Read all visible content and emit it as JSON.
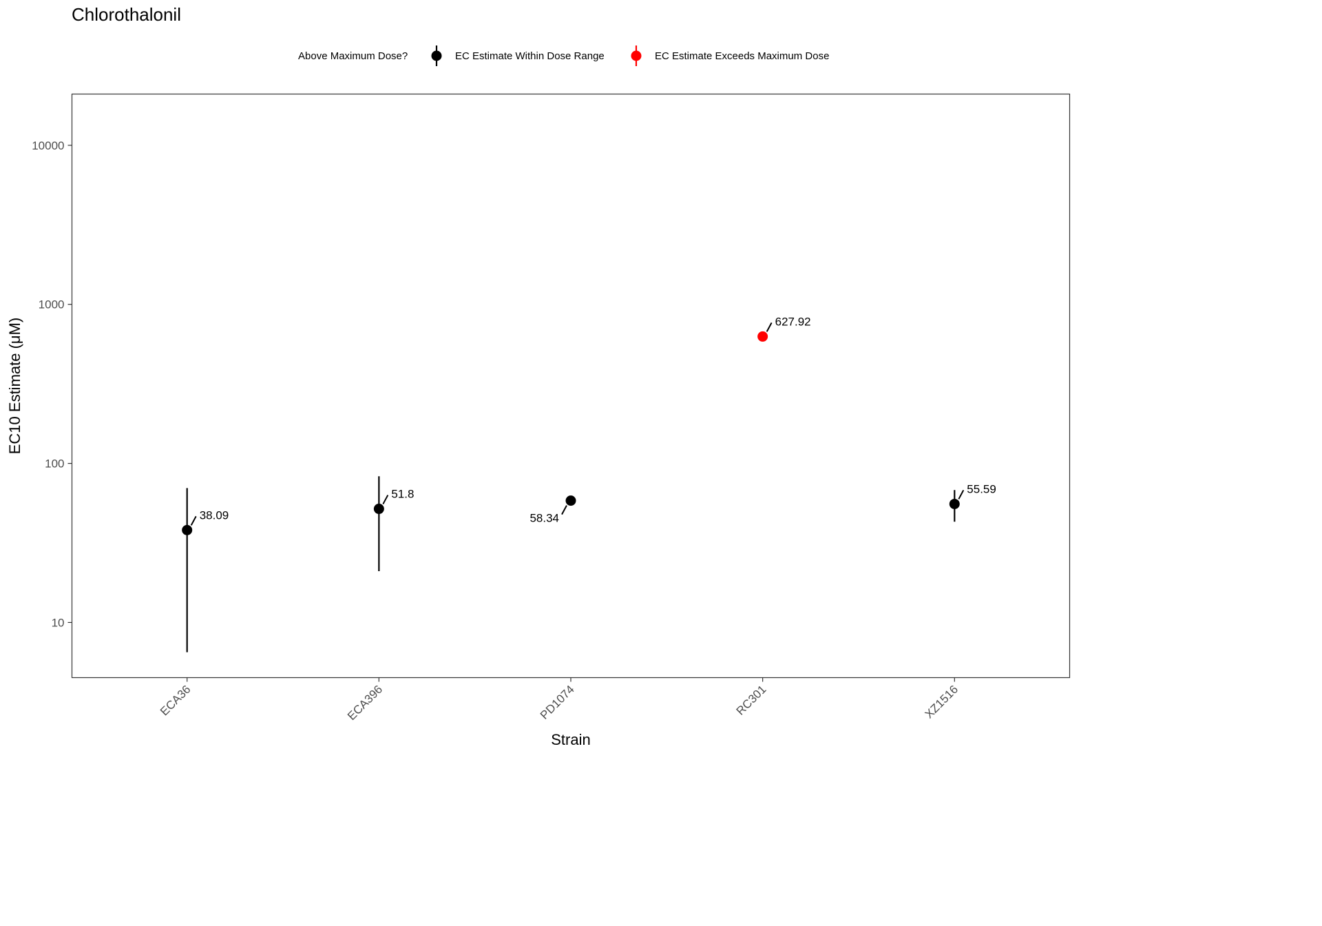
{
  "chart_data": {
    "type": "scatter",
    "title": "Chlorothalonil",
    "xlabel": "Strain",
    "ylabel": "EC10 Estimate (μM)",
    "y_scale": "log10",
    "ylim": [
      4.5,
      21000
    ],
    "y_ticks": [
      10,
      100,
      1000,
      10000
    ],
    "y_tick_labels": [
      "10",
      "100",
      "1000",
      "10000"
    ],
    "categories": [
      "ECA36",
      "ECA396",
      "PD1074",
      "RC301",
      "XZ1516"
    ],
    "grid": false,
    "legend": {
      "title": "Above Maximum Dose?",
      "placement": "top",
      "entries": [
        {
          "label": "EC Estimate Within Dose Range",
          "color": "#000000"
        },
        {
          "label": "EC Estimate Exceeds Maximum Dose",
          "color": "#ff0000"
        }
      ]
    },
    "points": [
      {
        "strain": "ECA36",
        "value": 38.09,
        "label": "38.09",
        "lower": 6.5,
        "upper": 70,
        "exceeds_max": false,
        "label_side": "right"
      },
      {
        "strain": "ECA396",
        "value": 51.8,
        "label": "51.8",
        "lower": 21,
        "upper": 83,
        "exceeds_max": false,
        "label_side": "right"
      },
      {
        "strain": "PD1074",
        "value": 58.34,
        "label": "58.34",
        "lower": null,
        "upper": null,
        "exceeds_max": false,
        "label_side": "left"
      },
      {
        "strain": "RC301",
        "value": 627.92,
        "label": "627.92",
        "lower": null,
        "upper": null,
        "exceeds_max": true,
        "label_side": "right"
      },
      {
        "strain": "XZ1516",
        "value": 55.59,
        "label": "55.59",
        "lower": 43,
        "upper": 68,
        "exceeds_max": false,
        "label_side": "right"
      }
    ]
  }
}
